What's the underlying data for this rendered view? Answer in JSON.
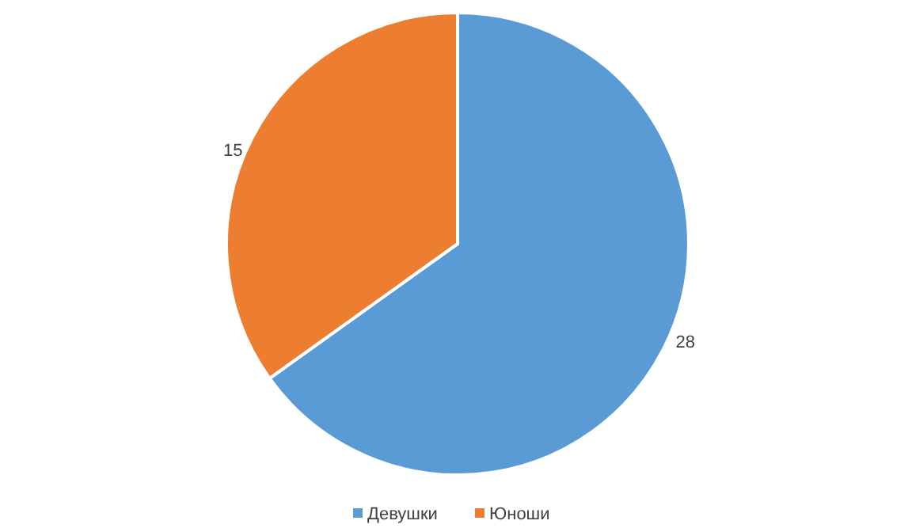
{
  "chart_data": {
    "type": "pie",
    "categories": [
      "Девушки",
      "Юноши"
    ],
    "values": [
      28,
      15
    ],
    "colors": [
      "#5b9bd5",
      "#ed7d31"
    ],
    "data_labels": true,
    "legend": "bottom"
  }
}
